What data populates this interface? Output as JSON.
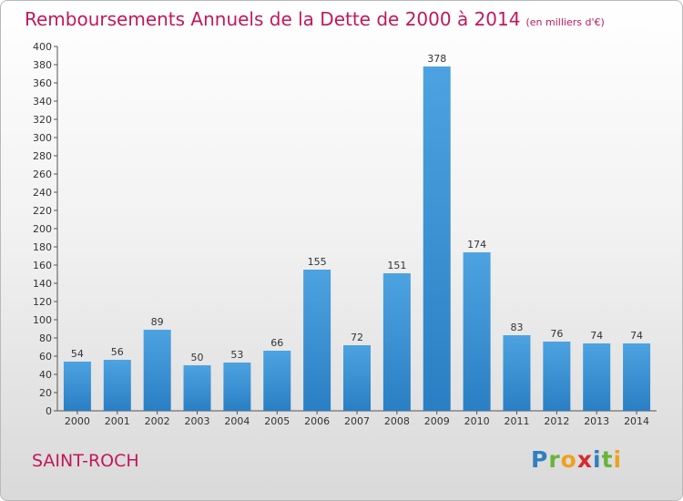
{
  "title": {
    "main": "Remboursements Annuels de la Dette de 2000 à 2014",
    "unit": "(en milliers d'€)"
  },
  "commune": "SAINT-ROCH",
  "logo": {
    "p": "P",
    "r": "r",
    "o": "o",
    "x": "x",
    "i": "i",
    "t": "t",
    "i2": "i"
  },
  "colors": {
    "bar": "#4da3e0",
    "bar_dark": "#2a7fc4",
    "title": "#c2185b",
    "grid": "#cccccc"
  },
  "chart_data": {
    "type": "bar",
    "title": "Remboursements Annuels de la Dette de 2000 à 2014",
    "subtitle": "(en milliers d'€)",
    "xlabel": "",
    "ylabel": "",
    "categories": [
      "2000",
      "2001",
      "2002",
      "2003",
      "2004",
      "2005",
      "2006",
      "2007",
      "2008",
      "2009",
      "2010",
      "2011",
      "2012",
      "2013",
      "2014"
    ],
    "values": [
      54,
      56,
      89,
      50,
      53,
      66,
      155,
      72,
      151,
      378,
      174,
      83,
      76,
      74,
      74
    ],
    "ylim": [
      0,
      400
    ],
    "yticks": [
      0,
      20,
      40,
      60,
      80,
      100,
      120,
      140,
      160,
      180,
      200,
      220,
      240,
      260,
      280,
      300,
      320,
      340,
      360,
      380,
      400
    ],
    "grid": false,
    "data_labels": true
  }
}
